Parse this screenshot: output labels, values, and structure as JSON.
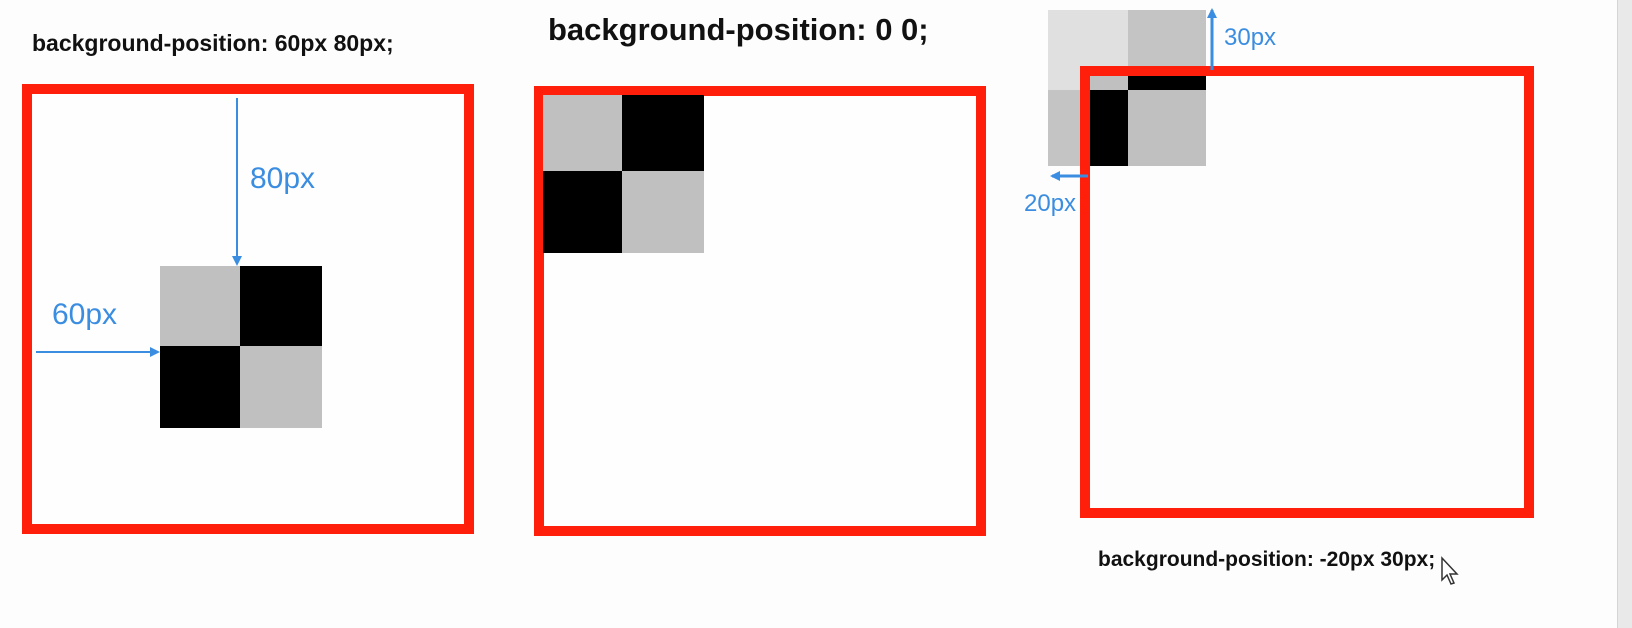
{
  "examples": [
    {
      "caption": "background-position: 60px 80px;",
      "offset_x_label": "60px",
      "offset_y_label": "80px"
    },
    {
      "caption": "background-position: 0 0;"
    },
    {
      "caption": "background-position: -20px 30px;",
      "caption_prefix": "background-position: -20px ",
      "caption_suffix": "30px;",
      "offset_x_label": "20px",
      "offset_y_label": "30px"
    }
  ],
  "colors": {
    "border": "#ff1f0a",
    "annotation": "#3a8de0",
    "tile_light": "#c0c0c0",
    "tile_dark": "#000000"
  },
  "icons": [
    "mouse-cursor-icon"
  ]
}
